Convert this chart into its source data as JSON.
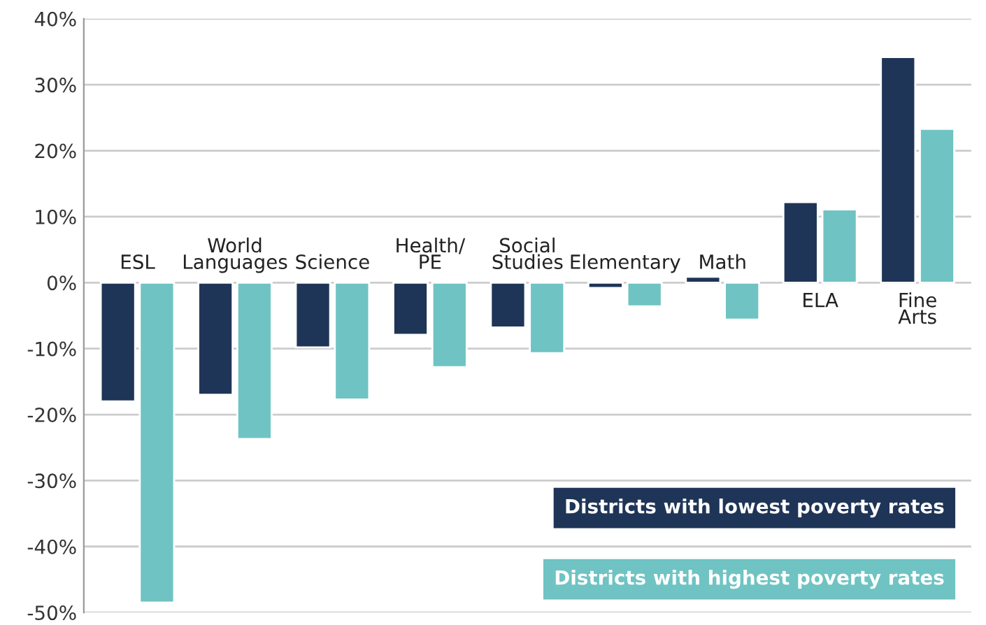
{
  "chart_data": {
    "type": "bar",
    "categories": [
      "ESL",
      "World\nLanguages",
      "Science",
      "Health/\nPE",
      "Social\nStudies",
      "Elementary",
      "Math",
      "ELA",
      "Fine\nArts"
    ],
    "series": [
      {
        "name": "Districts with lowest poverty rates",
        "color": "#1f3557",
        "values": [
          -18,
          -17,
          -9.8,
          -7.9,
          -6.8,
          -0.8,
          0.9,
          12.2,
          34.2
        ]
      },
      {
        "name": "Districts with highest poverty rates",
        "color": "#6fc3c3",
        "values": [
          -48.5,
          -23.7,
          -17.7,
          -12.8,
          -10.7,
          -3.6,
          -5.6,
          11.1,
          23.3
        ]
      }
    ],
    "ylim": [
      -50,
      40
    ],
    "yticks": [
      {
        "value": -50,
        "label": "-50%"
      },
      {
        "value": -40,
        "label": "-40%"
      },
      {
        "value": -30,
        "label": "-30%"
      },
      {
        "value": -20,
        "label": "-20%"
      },
      {
        "value": -10,
        "label": "-10%"
      },
      {
        "value": 0,
        "label": "0%"
      },
      {
        "value": 10,
        "label": "10%"
      },
      {
        "value": 20,
        "label": "20%"
      },
      {
        "value": 30,
        "label": "30%"
      },
      {
        "value": 40,
        "label": "40%"
      }
    ],
    "grid": "y",
    "legend": "bottom right"
  }
}
